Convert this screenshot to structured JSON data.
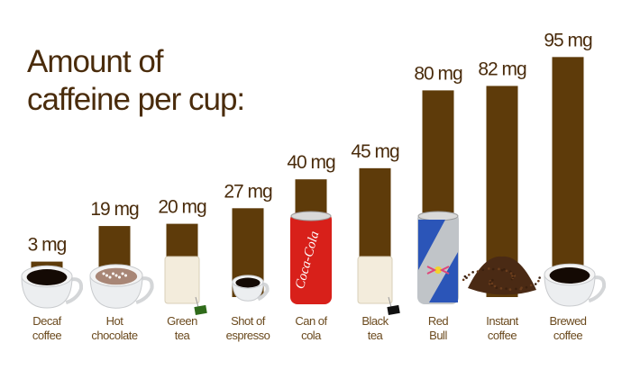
{
  "chart_data": {
    "type": "bar",
    "title": [
      "Amount of",
      "caffeine per cup:"
    ],
    "unit": "mg",
    "categories": [
      [
        "Decaf",
        "coffee"
      ],
      [
        "Hot",
        "chocolate"
      ],
      [
        "Green",
        "tea"
      ],
      [
        "Shot of",
        "espresso"
      ],
      [
        "Can of",
        "cola"
      ],
      [
        "Black",
        "tea"
      ],
      [
        "Red",
        "Bull"
      ],
      [
        "Instant",
        "coffee"
      ],
      [
        "Brewed",
        "coffee"
      ]
    ],
    "values": [
      3,
      19,
      20,
      27,
      40,
      45,
      80,
      82,
      95
    ],
    "value_labels": [
      "3 mg",
      "19 mg",
      "20 mg",
      "27 mg",
      "40 mg",
      "45 mg",
      "80 mg",
      "82 mg",
      "95 mg"
    ],
    "icons": [
      "coffee-cup-icon",
      "hot-chocolate-cup-icon",
      "green-tea-bag-icon",
      "espresso-cup-icon",
      "cola-can-icon",
      "black-tea-bag-icon",
      "red-bull-can-icon",
      "instant-coffee-grounds-icon",
      "brewed-coffee-cup-icon"
    ],
    "axes_visible": false,
    "grid": false,
    "colors": {
      "bar": "#5e3b0a",
      "text": "#4a2c0c",
      "label": "#6b4a1e"
    }
  }
}
